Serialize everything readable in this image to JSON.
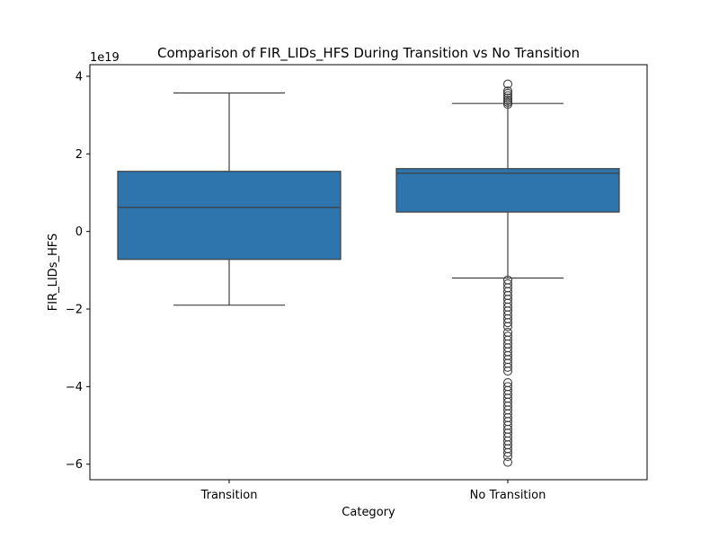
{
  "chart_data": {
    "type": "box",
    "title": "Comparison of FIR_LIDs_HFS During Transition vs No Transition",
    "xlabel": "Category",
    "ylabel": "FIR_LIDs_HFS",
    "y_offset_label": "1e19",
    "y_scale": 1e+19,
    "ylim": [
      -6.4,
      4.3
    ],
    "y_ticks": [
      4,
      2,
      0,
      -2,
      -4,
      -6
    ],
    "y_tick_labels": [
      "4",
      "2",
      "0",
      "−2",
      "−4",
      "−6"
    ],
    "grid": false,
    "box_color": "#2e75ae",
    "line_color": "#3f3f3f",
    "categories": [
      "Transition",
      "No Transition"
    ],
    "boxes": [
      {
        "category": "Transition",
        "whisker_low": -1.9,
        "q1": -0.72,
        "median": 0.62,
        "q3": 1.55,
        "whisker_high": 3.57,
        "outliers": []
      },
      {
        "category": "No Transition",
        "whisker_low": -1.2,
        "q1": 0.5,
        "median": 1.5,
        "q3": 1.62,
        "whisker_high": 3.3,
        "outliers": [
          3.28,
          3.33,
          3.38,
          3.44,
          3.5,
          3.56,
          3.62,
          3.8,
          -1.25,
          -1.35,
          -1.45,
          -1.55,
          -1.65,
          -1.75,
          -1.85,
          -1.95,
          -2.05,
          -2.15,
          -2.25,
          -2.35,
          -2.45,
          -2.6,
          -2.7,
          -2.8,
          -2.9,
          -3.0,
          -3.1,
          -3.2,
          -3.3,
          -3.4,
          -3.5,
          -3.6,
          -3.9,
          -4.0,
          -4.1,
          -4.2,
          -4.3,
          -4.4,
          -4.5,
          -4.6,
          -4.7,
          -4.8,
          -4.9,
          -5.0,
          -5.1,
          -5.2,
          -5.3,
          -5.4,
          -5.5,
          -5.6,
          -5.7,
          -5.8,
          -5.95
        ]
      }
    ]
  }
}
